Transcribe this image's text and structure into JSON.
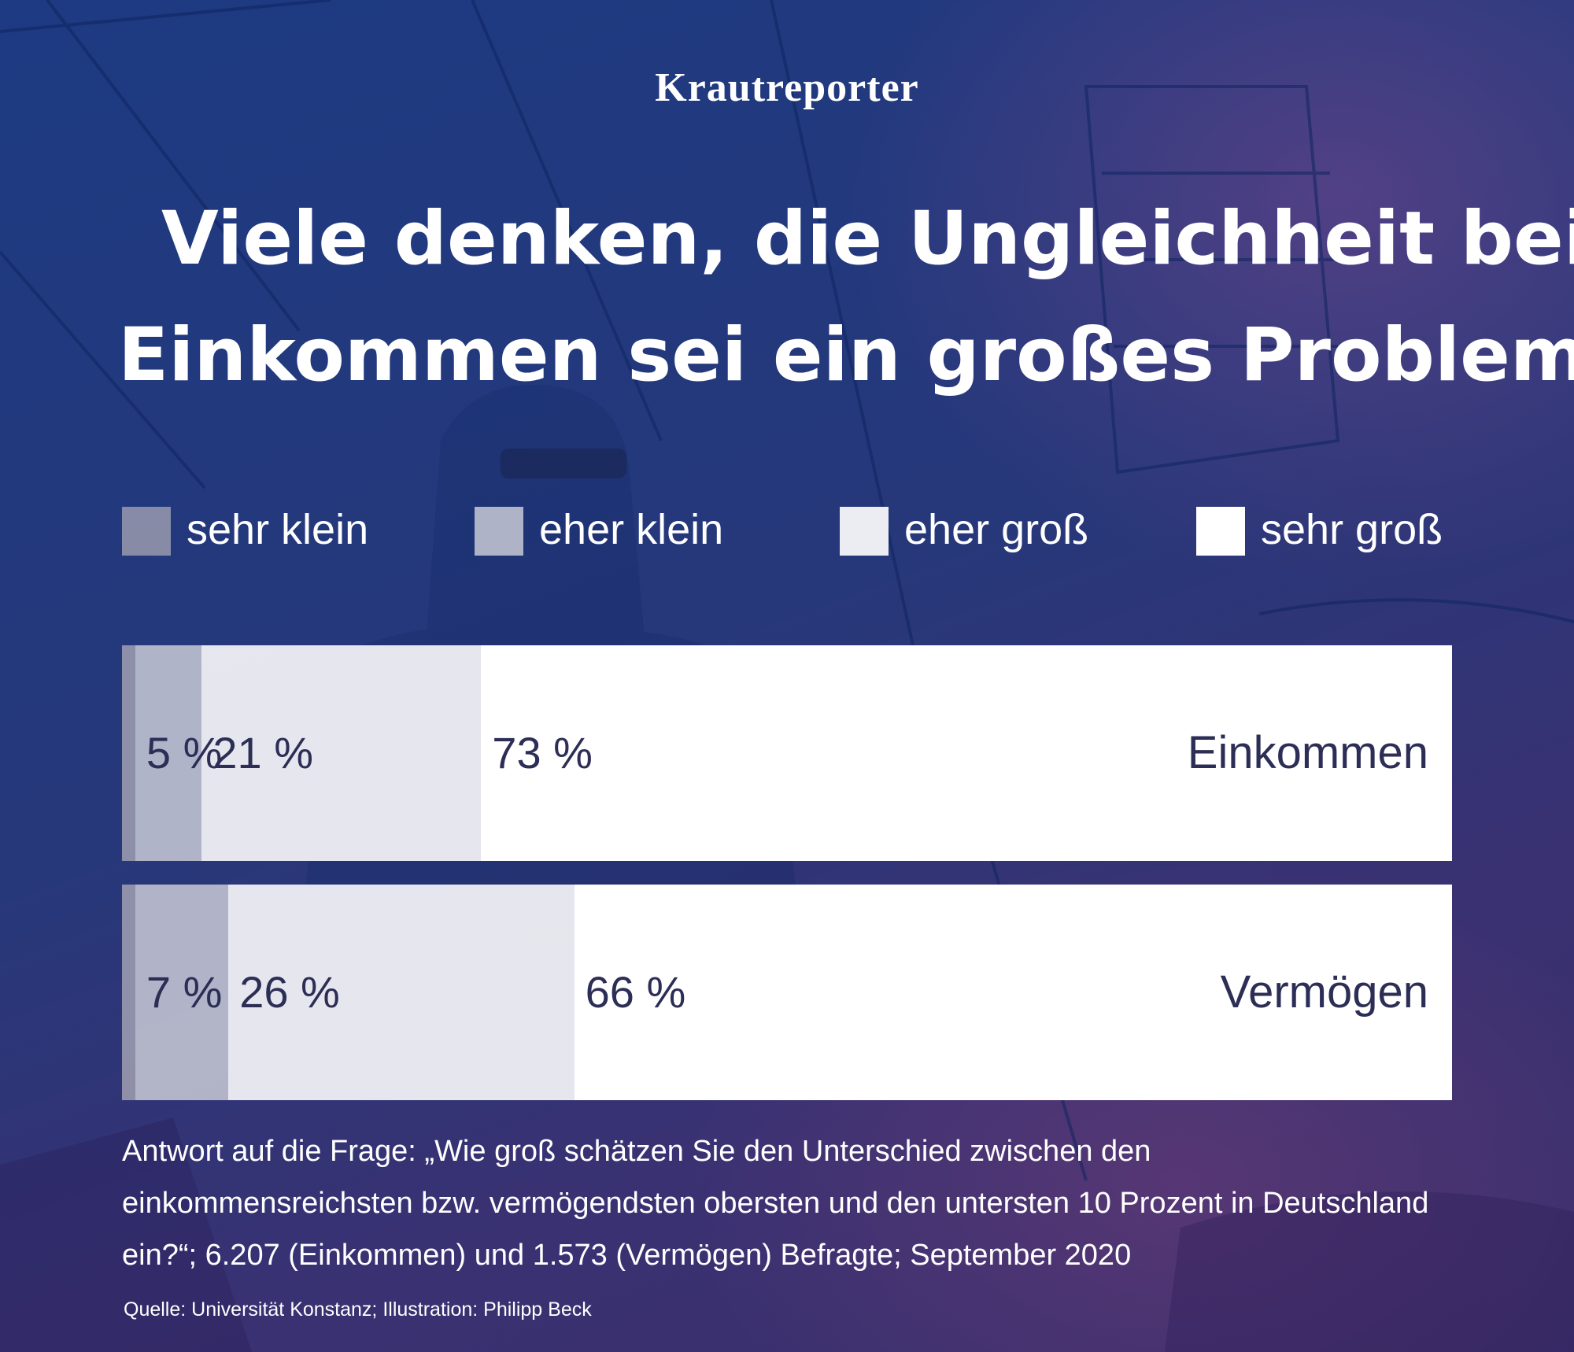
{
  "brand": {
    "logo": "Krautreporter"
  },
  "title": {
    "line1": "Viele denken, die Ungleichheit bei",
    "line2": "Einkommen sei ein großes Problem"
  },
  "legend": [
    {
      "label": "sehr klein",
      "color": "#9a9aae"
    },
    {
      "label": "eher klein",
      "color": "#c9cad6"
    },
    {
      "label": "eher groß",
      "color": "#ecedf2"
    },
    {
      "label": "sehr groß",
      "color": "#ffffff"
    }
  ],
  "chart_data": {
    "type": "bar",
    "orientation": "horizontal",
    "stacked": true,
    "categories": [
      "Einkommen",
      "Vermögen"
    ],
    "series": [
      {
        "name": "sehr klein",
        "values": [
          1,
          1
        ]
      },
      {
        "name": "eher klein",
        "values": [
          5,
          7
        ]
      },
      {
        "name": "eher groß",
        "values": [
          21,
          26
        ]
      },
      {
        "name": "sehr groß",
        "values": [
          73,
          66
        ]
      }
    ],
    "segment_labels": [
      [
        "",
        "5 %",
        "21 %",
        "73 %"
      ],
      [
        "",
        "7 %",
        "26 %",
        "66 %"
      ]
    ],
    "xlim": [
      0,
      100
    ],
    "unit": "%",
    "grid": false,
    "legend_position": "top"
  },
  "note": {
    "line1": "Antwort auf die Frage: „Wie groß schätzen Sie den Unterschied zwischen den",
    "line2": "einkommensreichsten bzw. vermögendsten obersten und den untersten 10 Prozent in Deutschland",
    "line3": "ein?“; 6.207 (Einkommen) und 1.573 (Vermögen) Befragte; September 2020"
  },
  "source": "Quelle: Universität Konstanz; Illustration: Philipp Beck"
}
